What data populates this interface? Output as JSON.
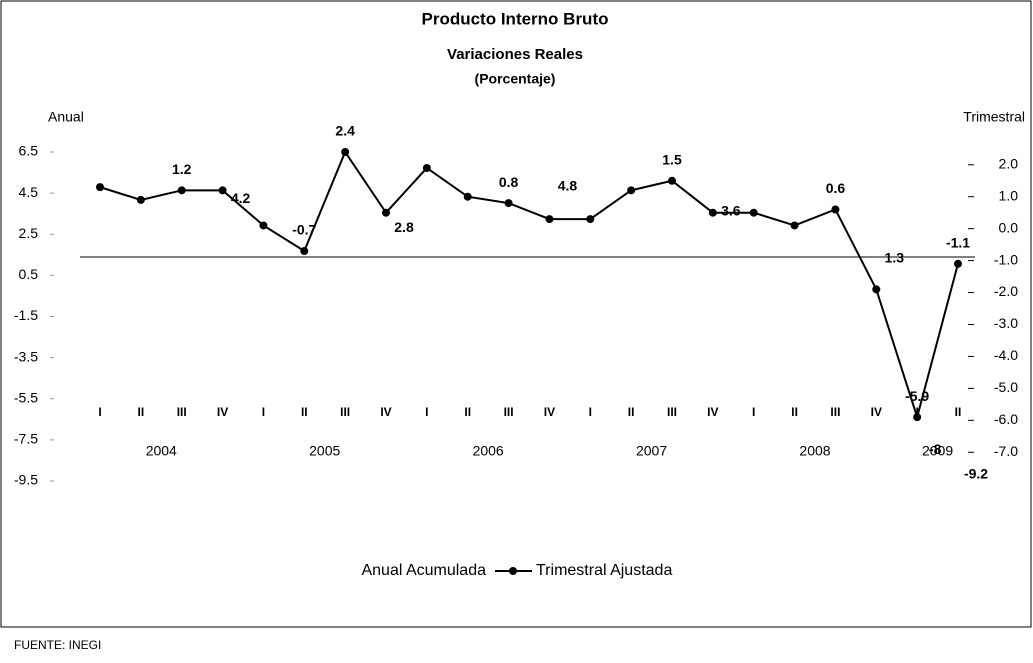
{
  "chart_data": {
    "type": "line",
    "title": "Producto Interno Bruto",
    "subtitle": "Variaciones Reales",
    "unit_label": "(Porcentaje)",
    "y_axis_label": "Anual",
    "y2_axis_label": "Trimestral",
    "source": "FUENTE: INEGI",
    "categories": [
      "I",
      "II",
      "III",
      "IV",
      "I",
      "II",
      "III",
      "IV",
      "I",
      "II",
      "III",
      "IV",
      "I",
      "II",
      "III",
      "IV",
      "I",
      "II",
      "III",
      "IV",
      "I",
      "II"
    ],
    "years": [
      "2004",
      "2005",
      "2006",
      "2007",
      "2008",
      "2009"
    ],
    "ylim": [
      -9.5,
      6.5
    ],
    "yticks": [
      6.5,
      4.5,
      2.5,
      0.5,
      -1.5,
      -3.5,
      -5.5,
      -7.5,
      -9.5
    ],
    "y2lim": [
      -7.9,
      2.4
    ],
    "y2ticks": [
      {
        "value": 2,
        "label": "2.0"
      },
      {
        "value": 1,
        "label": "1.0"
      },
      {
        "value": 0,
        "label": "0.0"
      },
      {
        "value": -1,
        "label": "-1.0"
      },
      {
        "value": -2,
        "label": "-2.0"
      },
      {
        "value": -3,
        "label": "-3.0"
      },
      {
        "value": -4,
        "label": "-4.0"
      },
      {
        "value": -5,
        "label": "-5.0"
      },
      {
        "value": -6,
        "label": "-6.0"
      },
      {
        "value": -7,
        "label": "-7.0"
      }
    ],
    "series": [
      {
        "name": "Anual Acumulada",
        "color": "#000000",
        "values": [
          null,
          null,
          null,
          4.2,
          null,
          null,
          null,
          2.8,
          null,
          null,
          null,
          4.8,
          null,
          null,
          null,
          3.6,
          null,
          null,
          null,
          1.3,
          -8.0,
          -9.2
        ]
      },
      {
        "name": "Trimestral Ajustada",
        "color": "#000000",
        "axis": "y2",
        "values": [
          1.3,
          0.9,
          1.2,
          1.2,
          0.1,
          -0.7,
          2.4,
          0.5,
          1.9,
          1.0,
          0.8,
          0.3,
          0.3,
          1.2,
          1.5,
          0.5,
          0.5,
          0.1,
          0.6,
          -1.9,
          -5.9,
          -1.1
        ],
        "value_labels": [
          null,
          null,
          "1.2",
          null,
          null,
          "-0.7",
          "2.4",
          null,
          null,
          null,
          "0.8",
          null,
          null,
          null,
          "1.5",
          null,
          null,
          null,
          "0.6",
          null,
          "-5.9",
          "-1.1"
        ]
      }
    ]
  }
}
